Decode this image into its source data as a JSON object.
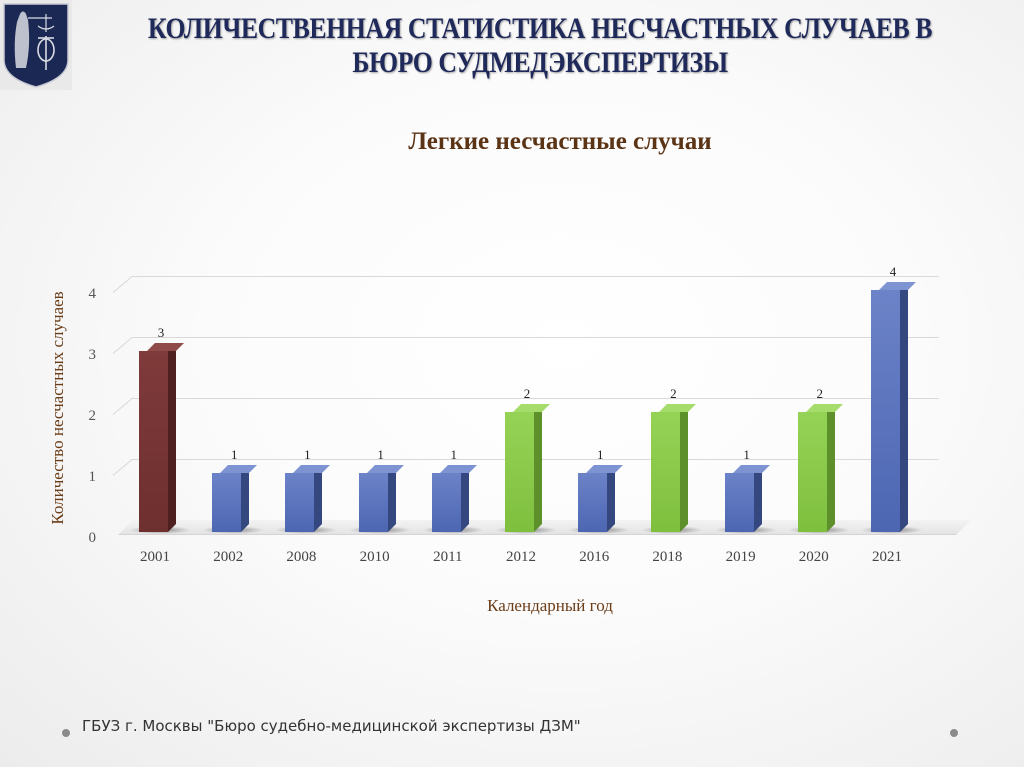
{
  "header": {
    "title": "КОЛИЧЕСТВЕННАЯ СТАТИСТИКА НЕСЧАСТНЫХ СЛУЧАЕВ В БЮРО СУДМЕДЭКСПЕРТИЗЫ",
    "title_line1": "КОЛИЧЕСТВЕННАЯ СТАТИСТИКА НЕСЧАСТНЫХ СЛУЧАЕВ В",
    "title_line2": "БЮРО СУДМЕДЭКСПЕРТИЗЫ",
    "logo": "forensic-bureau-emblem-icon"
  },
  "footer": {
    "text": "ГБУЗ г. Москвы \"Бюро судебно-медицинской экспертизы ДЗМ\""
  },
  "colors": {
    "title": "#1f2a5a",
    "chart_title": "#5b3315",
    "axis_label": "#6b3d17",
    "bar_red": "#7b3535",
    "bar_blue": "#5a72bd",
    "bar_green": "#8fce4a"
  },
  "chart_data": {
    "type": "bar",
    "title": "Легкие несчастные случаи",
    "xlabel": "Календарный год",
    "ylabel": "Количество несчастных случаев",
    "categories": [
      "2001",
      "2002",
      "2008",
      "2010",
      "2011",
      "2012",
      "2016",
      "2018",
      "2019",
      "2020",
      "2021"
    ],
    "values": [
      3,
      1,
      1,
      1,
      1,
      2,
      1,
      2,
      1,
      2,
      4
    ],
    "bar_colors": [
      "red",
      "blue",
      "blue",
      "blue",
      "blue",
      "green",
      "blue",
      "green",
      "blue",
      "green",
      "blue"
    ],
    "yticks": [
      "0",
      "1",
      "2",
      "3",
      "4"
    ],
    "ylim": [
      0,
      4
    ],
    "grid": true,
    "legend": "none",
    "style": "3d-column",
    "data_labels": [
      "3",
      "1",
      "1",
      "1",
      "1",
      "2",
      "1",
      "2",
      "1",
      "2",
      "4"
    ]
  }
}
